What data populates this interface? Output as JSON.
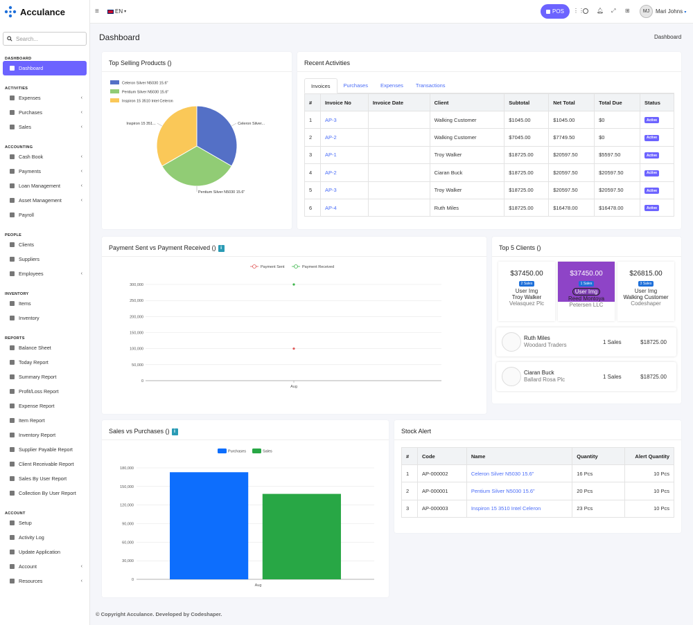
{
  "app": {
    "name": "Acculance"
  },
  "topbar": {
    "language": "EN",
    "pos_label": "POS",
    "user_initials": "MJ",
    "user_name": "Mari Johns"
  },
  "sidebar": {
    "search_placeholder": "Search...",
    "sections": [
      {
        "title": "DASHBOARD",
        "items": [
          {
            "label": "Dashboard",
            "active": true,
            "chevron": false
          }
        ]
      },
      {
        "title": "ACTIVITIES",
        "items": [
          {
            "label": "Expenses",
            "chevron": true
          },
          {
            "label": "Purchases",
            "chevron": true
          },
          {
            "label": "Sales",
            "chevron": true
          }
        ]
      },
      {
        "title": "ACCOUNTING",
        "items": [
          {
            "label": "Cash Book",
            "chevron": true
          },
          {
            "label": "Payments",
            "chevron": true
          },
          {
            "label": "Loan Management",
            "chevron": true
          },
          {
            "label": "Asset Management",
            "chevron": true
          },
          {
            "label": "Payroll",
            "chevron": false
          }
        ]
      },
      {
        "title": "PEOPLE",
        "items": [
          {
            "label": "Clients",
            "chevron": false
          },
          {
            "label": "Suppliers",
            "chevron": false
          },
          {
            "label": "Employees",
            "chevron": true
          }
        ]
      },
      {
        "title": "INVENTORY",
        "items": [
          {
            "label": "Items",
            "chevron": false
          },
          {
            "label": "Inventory",
            "chevron": false
          }
        ]
      },
      {
        "title": "REPORTS",
        "items": [
          {
            "label": "Balance Sheet"
          },
          {
            "label": "Today Report"
          },
          {
            "label": "Summary Report"
          },
          {
            "label": "Profit/Loss Report"
          },
          {
            "label": "Expense Report"
          },
          {
            "label": "Item Report"
          },
          {
            "label": "Inventory Report"
          },
          {
            "label": "Supplier Payable Report"
          },
          {
            "label": "Client Receivable Report"
          },
          {
            "label": "Sales By User Report"
          },
          {
            "label": "Collection By User Report"
          }
        ]
      },
      {
        "title": "ACCOUNT",
        "items": [
          {
            "label": "Setup"
          },
          {
            "label": "Activity Log"
          },
          {
            "label": "Update Application"
          },
          {
            "label": "Account",
            "chevron": true
          },
          {
            "label": "Resources",
            "chevron": true
          }
        ]
      }
    ]
  },
  "page": {
    "title": "Dashboard",
    "breadcrumb": "Dashboard"
  },
  "top_selling": {
    "title": "Top Selling Products ()",
    "chart_data": {
      "type": "pie",
      "labels": [
        "Celeron Silver N5030 15.6\"",
        "Pentium Silver N5030 15.6\"",
        "Inspiron 15 3510 Intel Celeron"
      ],
      "values": [
        1,
        1,
        1
      ],
      "colors": [
        "#5470c6",
        "#91cc75",
        "#fac858"
      ],
      "slice_labels": [
        "Celeron Silver...",
        "Pentium Silver N5030 15.6\"",
        "Inspiron 15 351..."
      ],
      "legend": "top-left"
    }
  },
  "recent": {
    "title": "Recent Activities",
    "tabs": [
      "Invoices",
      "Purchases",
      "Expenses",
      "Transactions"
    ],
    "headers": [
      "#",
      "Invoice No",
      "Invoice Date",
      "Client",
      "Subtotal",
      "Net Total",
      "Total Due",
      "Status"
    ],
    "rows": [
      [
        "1",
        "AP-3",
        "",
        "Walking Customer",
        "$1045.00",
        "$1045.00",
        "$0",
        "Active"
      ],
      [
        "2",
        "AP-2",
        "",
        "Walking Customer",
        "$7045.00",
        "$7749.50",
        "$0",
        "Active"
      ],
      [
        "3",
        "AP-1",
        "",
        "Troy Walker",
        "$18725.00",
        "$20597.50",
        "$5597.50",
        "Active"
      ],
      [
        "4",
        "AP-2",
        "",
        "Ciaran Buck",
        "$18725.00",
        "$20597.50",
        "$20597.50",
        "Active"
      ],
      [
        "5",
        "AP-3",
        "",
        "Troy Walker",
        "$18725.00",
        "$20597.50",
        "$20597.50",
        "Active"
      ],
      [
        "6",
        "AP-4",
        "",
        "Ruth Miles",
        "$18725.00",
        "$16478.00",
        "$16478.00",
        "Active"
      ]
    ]
  },
  "payment": {
    "title": "Payment Sent vs Payment Received ()",
    "chart_data": {
      "type": "scatter",
      "categories": [
        "Aug"
      ],
      "series": [
        {
          "name": "Payment Sent",
          "values": [
            100000
          ],
          "color": "#e05656"
        },
        {
          "name": "Payment Received",
          "values": [
            300000
          ],
          "color": "#3bb54a"
        }
      ],
      "yticks": [
        "0",
        "50,000",
        "100,000",
        "150,000",
        "200,000",
        "250,000",
        "300,000"
      ],
      "ylim": [
        0,
        300000
      ],
      "legend": "top-center"
    }
  },
  "top_clients": {
    "title": "Top 5 Clients ()",
    "cards": [
      {
        "amount": "$37450.00",
        "sales": "2 Sales",
        "img": "User Img",
        "name": "Troy Walker",
        "company": "Velasquez Plc"
      },
      {
        "amount": "$37450.00",
        "sales": "1 Sales",
        "img": "User Img",
        "name": "Reed Montoya",
        "company": "Petersen LLC"
      },
      {
        "amount": "$26815.00",
        "sales": "3 Sales",
        "img": "User Img",
        "name": "Walking Customer",
        "company": "Codeshaper"
      }
    ],
    "rows": [
      {
        "name": "Ruth Miles",
        "company": "Woodard Traders",
        "sales": "1 Sales",
        "amount": "$18725.00"
      },
      {
        "name": "Ciaran Buck",
        "company": "Ballard Rosa Plc",
        "sales": "1 Sales",
        "amount": "$18725.00"
      }
    ]
  },
  "sales_purchases": {
    "title": "Sales vs Purchases ()",
    "chart_data": {
      "type": "bar",
      "categories": [
        "Aug"
      ],
      "series": [
        {
          "name": "Purchases",
          "values": [
            173000
          ],
          "color": "#0d6efd"
        },
        {
          "name": "Sales",
          "values": [
            138000
          ],
          "color": "#28a745"
        }
      ],
      "yticks": [
        "0",
        "30,000",
        "60,000",
        "90,000",
        "120,000",
        "150,000",
        "180,000"
      ],
      "ylim": [
        0,
        180000
      ],
      "legend": "top-center"
    }
  },
  "stock": {
    "title": "Stock Alert",
    "headers": [
      "#",
      "Code",
      "Name",
      "Quantity",
      "Alert Quantity"
    ],
    "rows": [
      [
        "1",
        "AP-000002",
        "Celeron Silver N5030 15.6\"",
        "16 Pcs",
        "10 Pcs"
      ],
      [
        "2",
        "AP-000001",
        "Pentium Silver N5030 15.6\"",
        "20 Pcs",
        "10 Pcs"
      ],
      [
        "3",
        "AP-000003",
        "Inspiron 15 3510 Intel Celeron",
        "23 Pcs",
        "10 Pcs"
      ]
    ]
  },
  "footer": {
    "text": "© Copyright Acculance. Developed by Codeshaper."
  },
  "colors": {
    "accent": "#6c63ff",
    "purple_card": "#8e44c7",
    "sales_badge": "#1e6fd9"
  }
}
